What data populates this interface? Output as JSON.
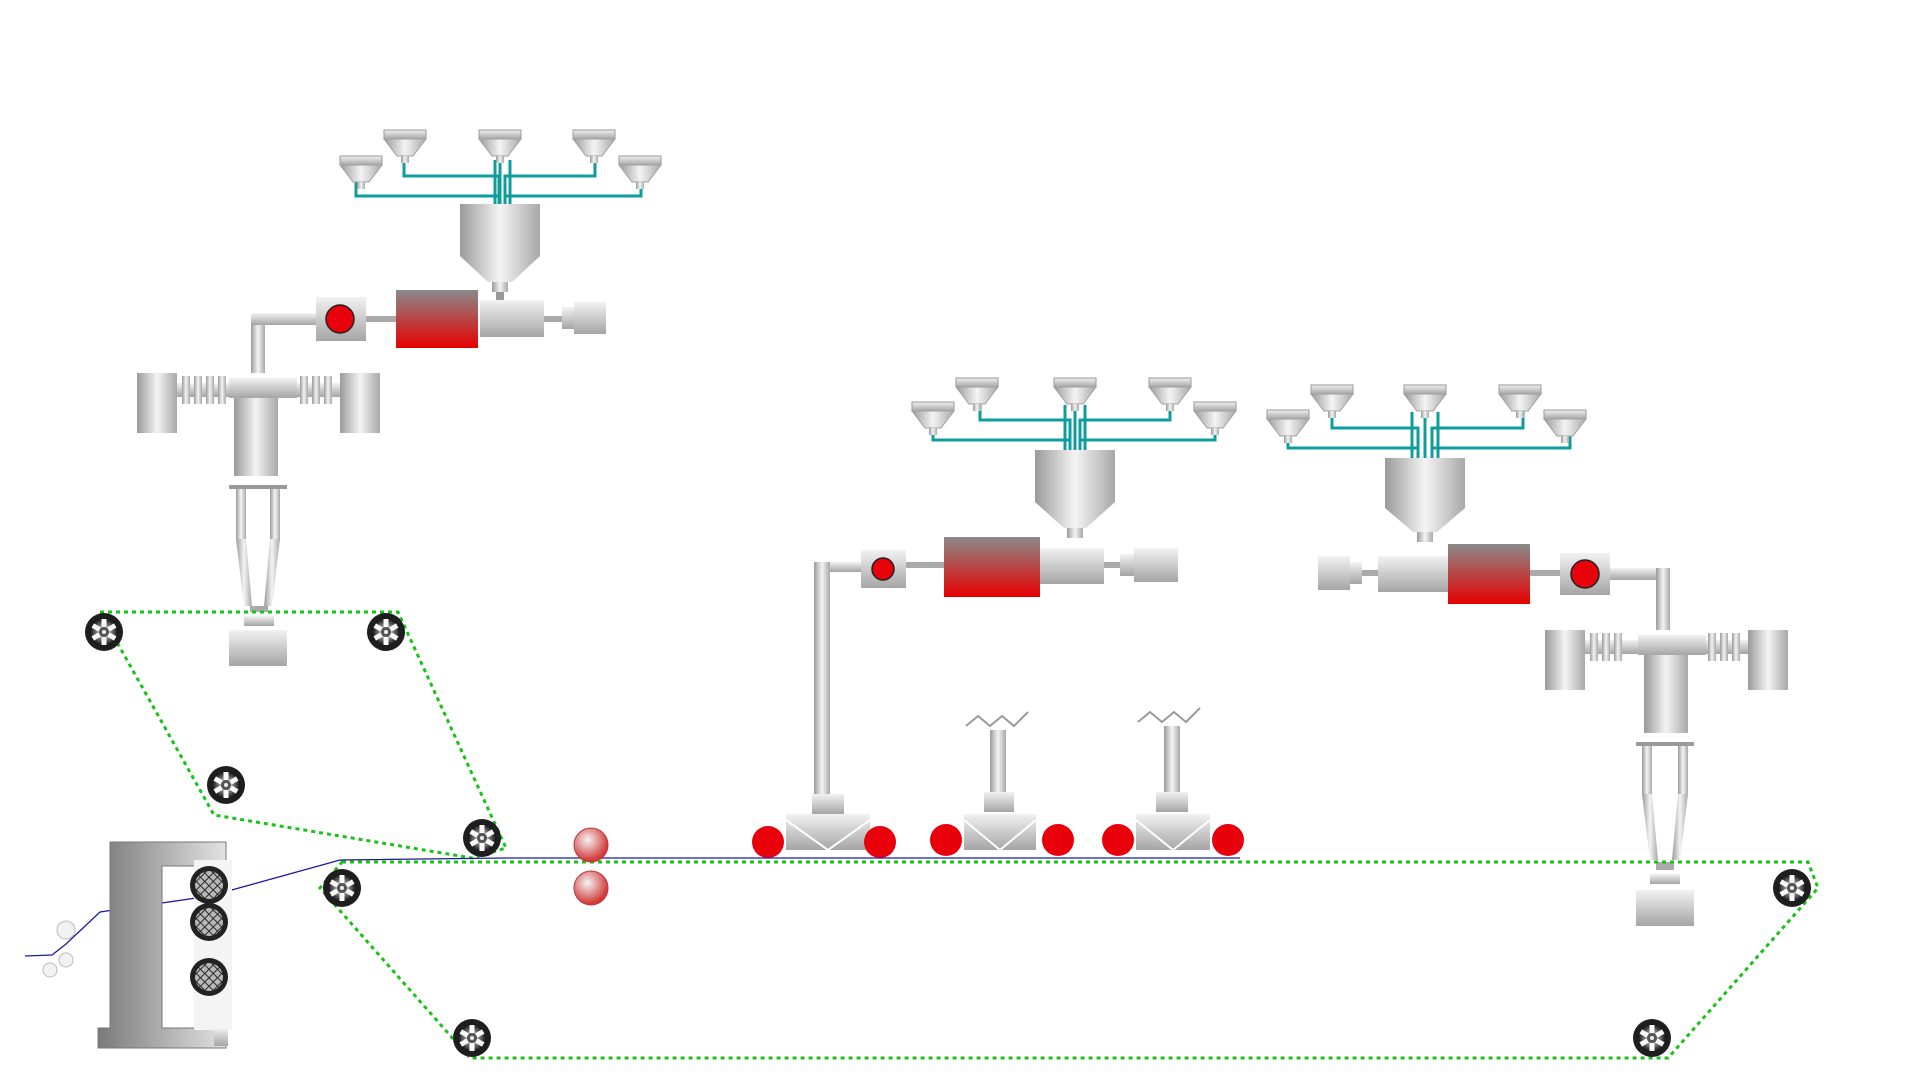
{
  "colors": {
    "background": "#ffffff",
    "pipe": "#0f9c9c",
    "belt": "#19c219",
    "web": "#1a1aa8",
    "heater": "#e00000",
    "indicator": "#e8000a",
    "metal_light": "#f2f2f2",
    "metal_dark": "#9a9a9a",
    "roller": "#2a2a2a"
  },
  "icons": {
    "hopper": "hopper-icon",
    "mixer": "mixing-hopper-icon",
    "heater": "heater-barrel-icon",
    "roller": "gear-roller-icon",
    "indicator": "status-lamp-icon",
    "coating_roll": "coating-roll-icon"
  },
  "extrusion_lines": [
    {
      "id": "line-1",
      "status": "running"
    },
    {
      "id": "line-2",
      "status": "running"
    },
    {
      "id": "line-3",
      "status": "running"
    }
  ],
  "coating_stations": [
    {
      "id": "station-1",
      "status": "active"
    },
    {
      "id": "station-2",
      "status": "active"
    },
    {
      "id": "station-3",
      "status": "active"
    }
  ]
}
